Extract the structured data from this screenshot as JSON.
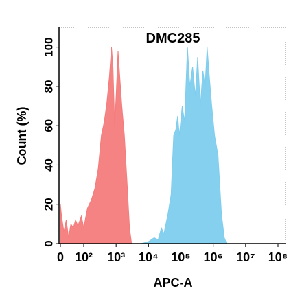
{
  "chart_data": {
    "type": "area",
    "title": "DMC285",
    "xlabel": "APC-A",
    "ylabel": "Count (%)",
    "xscale": "biexponential",
    "xlim": [
      0,
      100000000
    ],
    "xticks": [
      0,
      {
        "value": 100,
        "label": "10²"
      },
      {
        "value": 1000,
        "label": "10³"
      },
      {
        "value": 10000,
        "label": "10⁴"
      },
      {
        "value": 100000,
        "label": "10⁵"
      },
      {
        "value": 1000000,
        "label": "10⁶"
      },
      {
        "value": 10000000,
        "label": "10⁷"
      },
      {
        "value": 100000000,
        "label": "10⁸"
      }
    ],
    "ylim": [
      0,
      110
    ],
    "yticks": [
      0,
      20,
      40,
      60,
      80,
      100
    ],
    "series": [
      {
        "color": "#f47c7c",
        "x": [
          0,
          5,
          15,
          25,
          35,
          45,
          55,
          65,
          75,
          90,
          100,
          130,
          170,
          220,
          280,
          350,
          430,
          520,
          620,
          720,
          800,
          900,
          1000,
          1150,
          1300,
          1500,
          1800,
          2200,
          2600,
          3000
        ],
        "values": [
          20,
          14,
          6,
          12,
          3,
          10,
          8,
          12,
          9,
          14,
          8,
          18,
          22,
          28,
          38,
          55,
          62,
          72,
          85,
          100,
          90,
          60,
          75,
          98,
          85,
          70,
          55,
          30,
          8,
          0
        ]
      },
      {
        "color": "#7fcdee",
        "x": [
          6000,
          10000,
          15000,
          20000,
          25000,
          30000,
          40000,
          50000,
          60000,
          70000,
          80000,
          90000,
          110000,
          130000,
          160000,
          190000,
          230000,
          280000,
          330000,
          400000,
          480000,
          560000,
          650000,
          760000,
          900000,
          1100000,
          1400000,
          1800000,
          2200000,
          2600000
        ],
        "values": [
          0,
          1,
          3,
          2,
          8,
          5,
          15,
          25,
          55,
          58,
          65,
          55,
          70,
          62,
          100,
          80,
          90,
          75,
          95,
          70,
          88,
          80,
          100,
          85,
          70,
          55,
          45,
          15,
          3,
          0
        ]
      }
    ]
  }
}
